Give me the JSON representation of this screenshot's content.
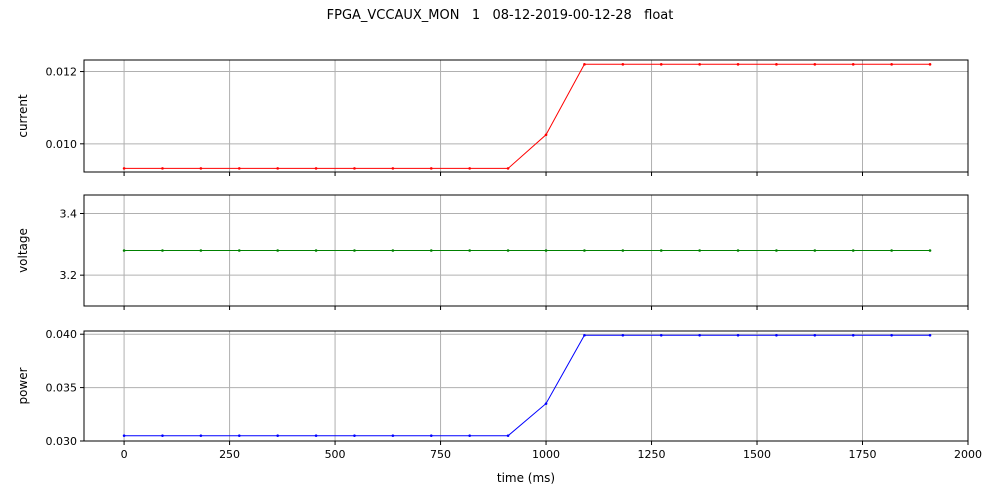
{
  "chart_data": {
    "type": "line",
    "title": "FPGA_VCCAUX_MON   1   08-12-2019-00-12-28   float",
    "xlabel": "time (ms)",
    "xlim": [
      -95,
      2000
    ],
    "xticks": [
      0,
      250,
      500,
      750,
      1000,
      1250,
      1500,
      1750,
      2000
    ],
    "grid": true,
    "subplots": [
      {
        "ylabel": "current",
        "color": "#ff0000",
        "ylim": [
          0.00922,
          0.01232
        ],
        "yticks": [
          0.01,
          0.012
        ],
        "ytick_labels": [
          "0.010",
          "0.012"
        ],
        "x": [
          0,
          91,
          182,
          273,
          364,
          455,
          546,
          637,
          728,
          819,
          910,
          1000,
          1091,
          1182,
          1273,
          1364,
          1455,
          1546,
          1637,
          1728,
          1819,
          1910
        ],
        "values": [
          0.00932,
          0.00932,
          0.00932,
          0.00932,
          0.00932,
          0.00932,
          0.00932,
          0.00932,
          0.00932,
          0.00932,
          0.00932,
          0.01025,
          0.0122,
          0.0122,
          0.0122,
          0.0122,
          0.0122,
          0.0122,
          0.0122,
          0.0122,
          0.0122,
          0.0122
        ]
      },
      {
        "ylabel": "voltage",
        "color": "#008000",
        "ylim": [
          3.1,
          3.46
        ],
        "yticks": [
          3.2,
          3.4
        ],
        "ytick_labels": [
          "3.2",
          "3.4"
        ],
        "x": [
          0,
          91,
          182,
          273,
          364,
          455,
          546,
          637,
          728,
          819,
          910,
          1000,
          1091,
          1182,
          1273,
          1364,
          1455,
          1546,
          1637,
          1728,
          1819,
          1910
        ],
        "values": [
          3.28,
          3.28,
          3.28,
          3.28,
          3.28,
          3.28,
          3.28,
          3.28,
          3.28,
          3.28,
          3.28,
          3.28,
          3.28,
          3.28,
          3.28,
          3.28,
          3.28,
          3.28,
          3.28,
          3.28,
          3.28,
          3.28
        ]
      },
      {
        "ylabel": "power",
        "color": "#0000ff",
        "ylim": [
          0.03,
          0.0403
        ],
        "yticks": [
          0.03,
          0.035,
          0.04
        ],
        "ytick_labels": [
          "0.030",
          "0.035",
          "0.040"
        ],
        "x": [
          0,
          91,
          182,
          273,
          364,
          455,
          546,
          637,
          728,
          819,
          910,
          1000,
          1091,
          1182,
          1273,
          1364,
          1455,
          1546,
          1637,
          1728,
          1819,
          1910
        ],
        "values": [
          0.0305,
          0.0305,
          0.0305,
          0.0305,
          0.0305,
          0.0305,
          0.0305,
          0.0305,
          0.0305,
          0.0305,
          0.0305,
          0.0335,
          0.0399,
          0.0399,
          0.0399,
          0.0399,
          0.0399,
          0.0399,
          0.0399,
          0.0399,
          0.0399,
          0.0399
        ]
      }
    ]
  }
}
